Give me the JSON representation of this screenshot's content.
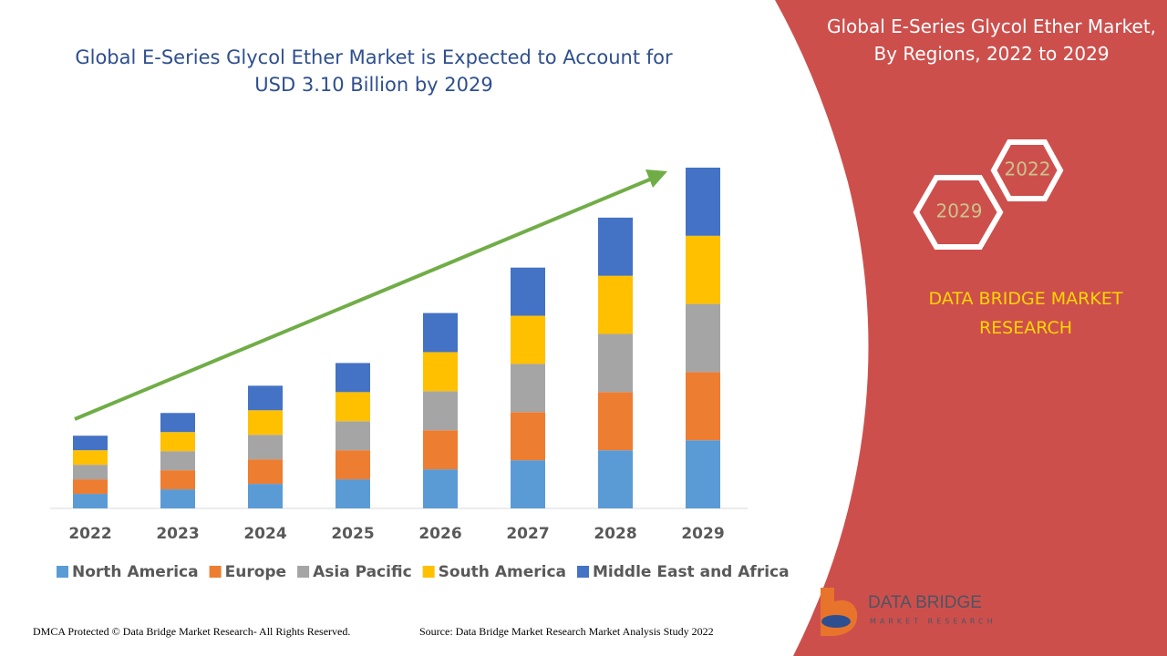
{
  "chart_data": {
    "type": "bar",
    "stacked": true,
    "title": "Global E-Series Glycol Ether Market is Expected to Account for USD 3.10 Billion by 2029",
    "categories": [
      "2022",
      "2023",
      "2024",
      "2025",
      "2026",
      "2027",
      "2028",
      "2029"
    ],
    "series": [
      {
        "name": "North America",
        "color": "#5b9bd5",
        "values": [
          16,
          21,
          27,
          32,
          43,
          53,
          64,
          75
        ]
      },
      {
        "name": "Europe",
        "color": "#ed7d31",
        "values": [
          16,
          21,
          27,
          32,
          43,
          53,
          64,
          75
        ]
      },
      {
        "name": "Asia Pacific",
        "color": "#a5a5a5",
        "values": [
          16,
          21,
          27,
          32,
          43,
          53,
          64,
          75
        ]
      },
      {
        "name": "South America",
        "color": "#ffc000",
        "values": [
          16,
          21,
          27,
          32,
          43,
          53,
          64,
          75
        ]
      },
      {
        "name": "Middle East and Africa",
        "color": "#4472c4",
        "values": [
          16,
          21,
          27,
          32,
          43,
          53,
          64,
          75
        ]
      }
    ],
    "legend": "bottom",
    "trend_arrow_color": "#70ad47"
  },
  "panel": {
    "title": "Global E-Series Glycol Ether Market, By Regions, 2022 to 2029",
    "hex_labels": [
      "2022",
      "2029"
    ],
    "brand": "DATA BRIDGE MARKET RESEARCH"
  },
  "logo": {
    "name": "DATA BRIDGE",
    "tagline": "MARKET RESEARCH"
  },
  "footer": {
    "left": "DMCA Protected © Data Bridge Market Research- All Rights Reserved.",
    "right": "Source: Data Bridge Market Research Market Analysis Study 2022"
  }
}
